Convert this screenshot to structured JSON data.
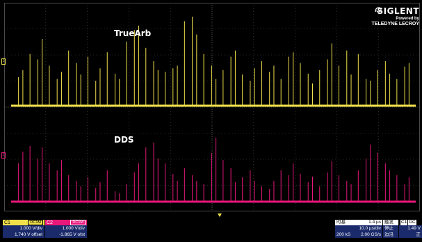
{
  "labels": {
    "top": "TrueArb",
    "bottom": "DDS"
  },
  "logo": {
    "brand": "SIGLENT",
    "powered": "Powered by",
    "sub": "TELEDYNE LECROY",
    "icon": "siglent-swirl-icon"
  },
  "markers": {
    "ch1": "1",
    "ch2": "2"
  },
  "colors": {
    "ch1": "#f0e14a",
    "ch2": "#e8177a",
    "grid": "#4a4a4a",
    "bar": "#1a2a6a"
  },
  "channels": [
    {
      "name": "C1",
      "coupling": "DC1M",
      "scale": "1.000 V/div",
      "offset": "1.740 V offset"
    },
    {
      "name": "C2",
      "coupling": "DC1M",
      "scale": "1.000 V/div",
      "offset": "-1.865 V ofst"
    }
  ],
  "timebase": {
    "title": "时基",
    "delay": "1.4 µs",
    "scale": "10.0 µs/div",
    "samples": "200 kS",
    "rate": "2.00 GS/s"
  },
  "trigger": {
    "title": "触发",
    "status": "停止",
    "edge": "边沿"
  },
  "trigger_ch": {
    "title": "C1",
    "coupling": "DC",
    "level": "1.49 V",
    "slope": "正"
  },
  "traces": {
    "ch1_pulses": [
      0.32,
      0.4,
      0.58,
      0.52,
      0.75,
      0.45,
      0.3,
      0.38,
      0.62,
      0.48,
      0.35,
      0.55,
      0.28,
      0.42,
      0.6,
      0.36,
      0.3,
      0.72,
      0.85,
      0.9,
      0.65,
      0.5,
      0.4,
      0.38,
      0.42,
      0.45,
      0.95,
      1.0,
      0.8,
      0.58,
      0.45,
      0.3,
      0.4,
      0.55,
      0.62,
      0.35,
      0.28,
      0.42,
      0.5,
      0.38,
      0.45,
      0.3,
      0.55,
      0.6,
      0.48,
      0.36,
      0.25,
      0.4,
      0.52,
      0.7,
      0.45,
      0.62,
      0.35,
      0.58,
      0.3,
      0.28,
      0.4,
      0.5,
      0.36,
      0.3,
      0.44,
      0.48
    ],
    "ch2_pulses": [
      0.55,
      0.72,
      0.8,
      0.62,
      0.78,
      0.55,
      0.45,
      0.6,
      0.38,
      0.3,
      0.22,
      0.35,
      0.2,
      0.28,
      0.45,
      0.15,
      0.12,
      0.25,
      0.42,
      0.55,
      0.78,
      0.85,
      0.62,
      0.55,
      0.4,
      0.3,
      0.48,
      0.38,
      0.3,
      0.25,
      0.7,
      0.92,
      0.6,
      0.48,
      0.28,
      0.35,
      0.45,
      0.3,
      0.22,
      0.18,
      0.3,
      0.45,
      0.38,
      0.55,
      0.4,
      0.28,
      0.36,
      0.22,
      0.42,
      0.58,
      0.38,
      0.3,
      0.25,
      0.45,
      0.62,
      0.82,
      0.7,
      0.55,
      0.45,
      0.38,
      0.25,
      0.35
    ]
  }
}
